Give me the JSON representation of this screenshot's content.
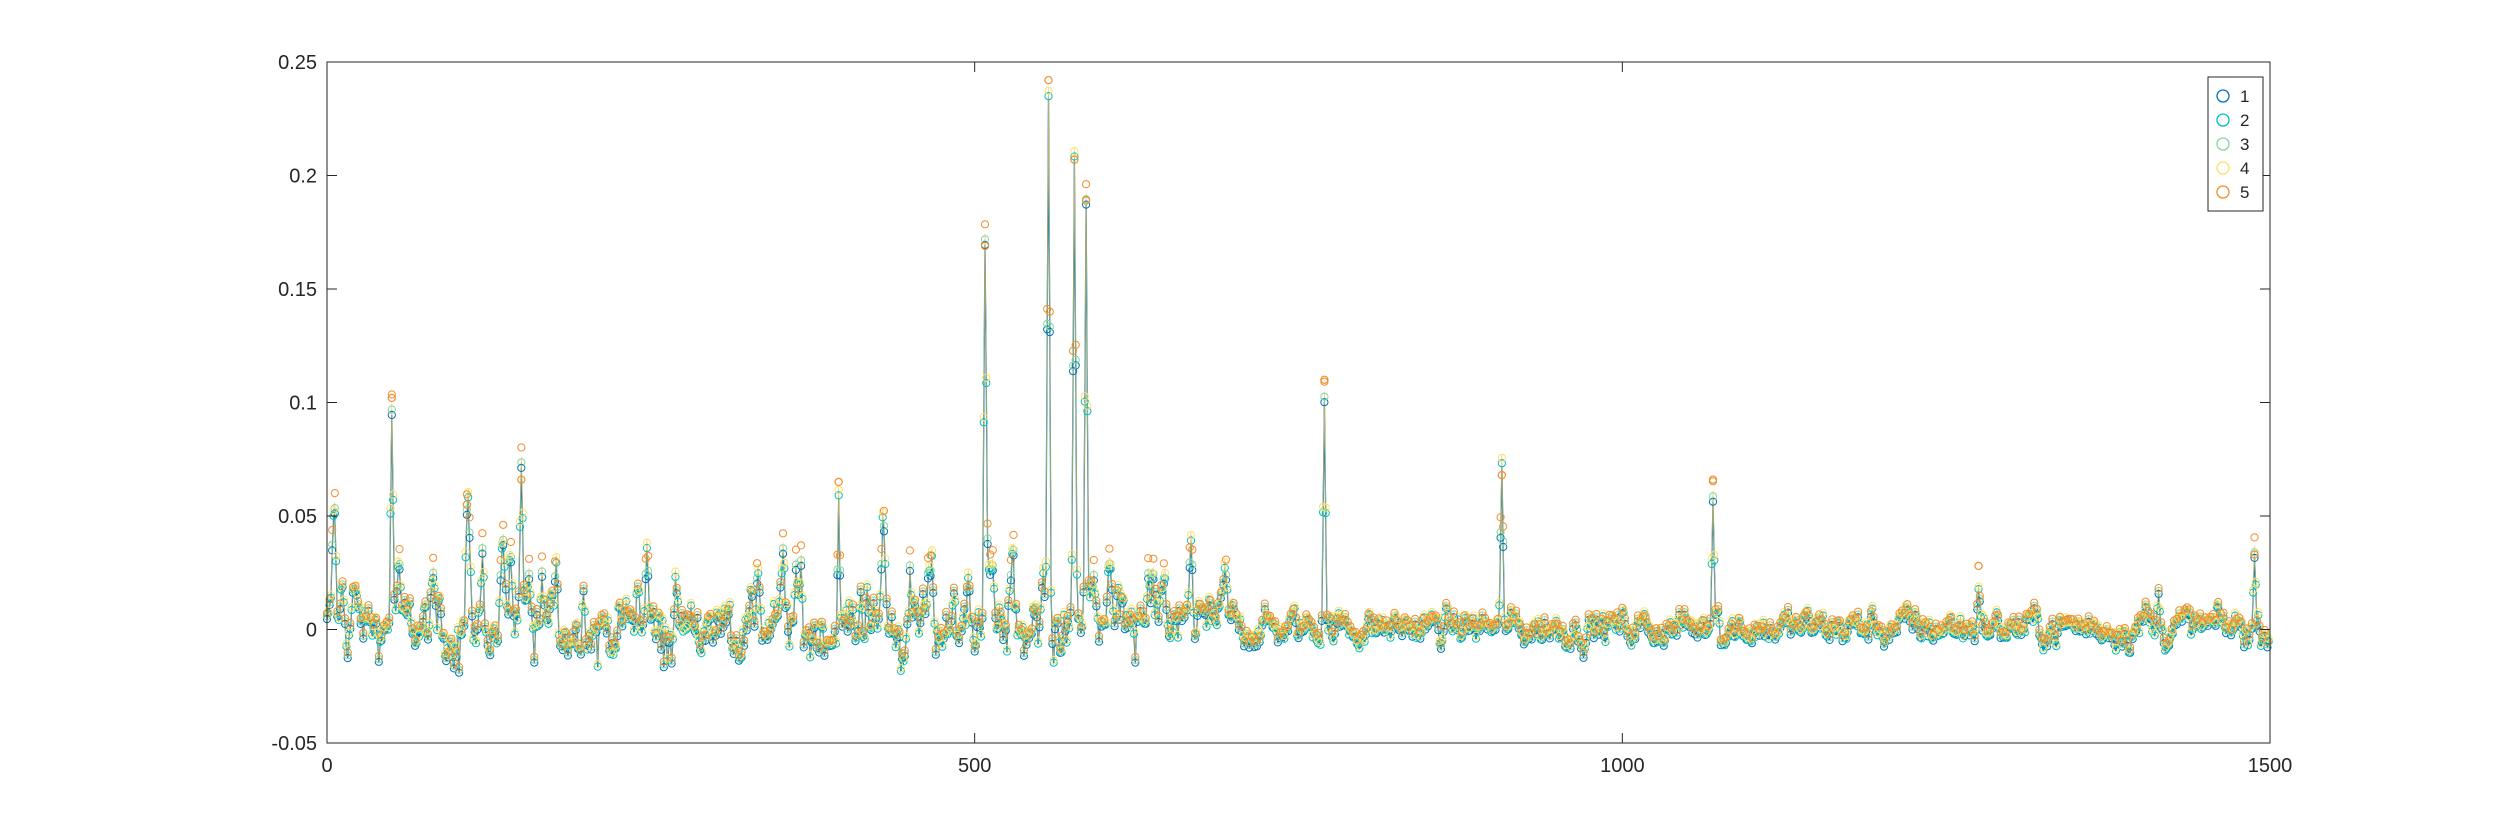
{
  "chart_data": {
    "type": "line",
    "title": "",
    "xlabel": "",
    "ylabel": "",
    "xlim": [
      0,
      1500
    ],
    "ylim": [
      -0.05,
      0.25
    ],
    "xticks": [
      0,
      500,
      1000,
      1500
    ],
    "xtick_labels": [
      "0",
      "500",
      "1000",
      "1500"
    ],
    "yticks": [
      -0.05,
      0,
      0.05,
      0.1,
      0.15,
      0.2,
      0.25
    ],
    "ytick_labels": [
      "-0.05",
      "0",
      "0.05",
      "0.1",
      "0.15",
      "0.2",
      "0.25"
    ],
    "grid": false,
    "legend_position": "top-right",
    "marker": "circle",
    "series": [
      {
        "name": "1",
        "color": "#0072BD"
      },
      {
        "name": "2",
        "color": "#00BFBF"
      },
      {
        "name": "3",
        "color": "#7FD8A0"
      },
      {
        "name": "4",
        "color": "#FFE066"
      },
      {
        "name": "5",
        "color": "#F28E2B"
      }
    ],
    "peaks": [
      {
        "x": 50,
        "y": 0.102
      },
      {
        "x": 108,
        "y": 0.055
      },
      {
        "x": 150,
        "y": 0.066
      },
      {
        "x": 395,
        "y": 0.065
      },
      {
        "x": 508,
        "y": 0.169
      },
      {
        "x": 557,
        "y": 0.242
      },
      {
        "x": 577,
        "y": 0.207
      },
      {
        "x": 586,
        "y": 0.189
      },
      {
        "x": 770,
        "y": 0.11
      },
      {
        "x": 907,
        "y": 0.068
      },
      {
        "x": 1070,
        "y": 0.066
      },
      {
        "x": 1275,
        "y": 0.028
      },
      {
        "x": 1488,
        "y": 0.033
      }
    ]
  }
}
